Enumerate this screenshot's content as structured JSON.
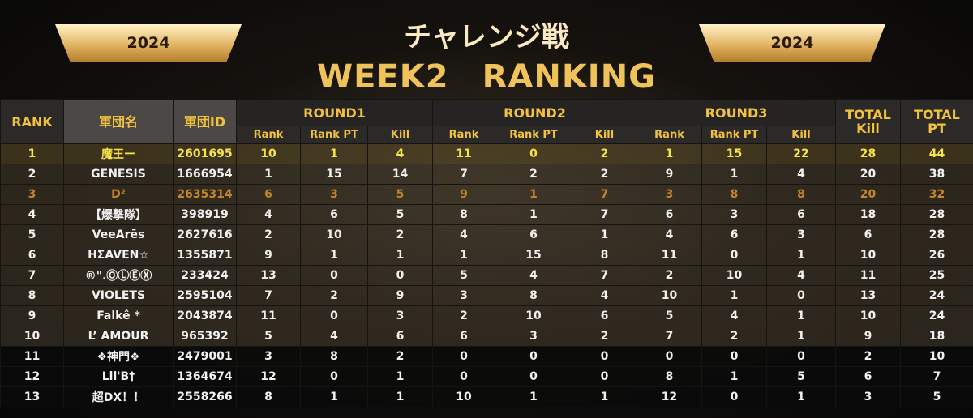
{
  "header": {
    "title": "チャレンジ戦",
    "subtitle": "WEEK2　RANKING",
    "year_left": "2024",
    "year_right": "2024"
  },
  "table": {
    "headers": {
      "top": [
        "RANK",
        "軍団名",
        "軍団ID",
        "ROUND1",
        "ROUND2",
        "ROUND3",
        "TOTAL\nKill",
        "TOTAL\nPT"
      ],
      "sub": [
        "Rank",
        "Rank PT",
        "Kill",
        "Rank",
        "Rank PT",
        "Kill",
        "Rank",
        "Rank PT",
        "Kill"
      ]
    },
    "rows": [
      [
        1,
        "魔王ー",
        2601695,
        10,
        1,
        4,
        11,
        0,
        2,
        1,
        15,
        22,
        28,
        44
      ],
      [
        2,
        "GENESIS",
        1666954,
        1,
        15,
        14,
        7,
        2,
        2,
        9,
        1,
        4,
        20,
        38
      ],
      [
        3,
        "D²",
        2635314,
        6,
        3,
        5,
        9,
        1,
        7,
        3,
        8,
        8,
        20,
        32
      ],
      [
        4,
        "【爆撃隊】",
        398919,
        4,
        6,
        5,
        8,
        1,
        7,
        6,
        3,
        6,
        18,
        28
      ],
      [
        5,
        "VeeArēs",
        2627616,
        2,
        10,
        2,
        4,
        6,
        1,
        4,
        6,
        3,
        6,
        28
      ],
      [
        6,
        "HΣAVEN☆",
        1355871,
        9,
        1,
        1,
        1,
        15,
        8,
        11,
        0,
        1,
        10,
        26
      ],
      [
        7,
        "®\".ⓄⓁⒺⓍ",
        233424,
        13,
        0,
        0,
        5,
        4,
        7,
        2,
        10,
        4,
        11,
        25
      ],
      [
        8,
        "VIOLETS",
        2595104,
        7,
        2,
        9,
        3,
        8,
        4,
        10,
        1,
        0,
        13,
        24
      ],
      [
        9,
        "Falkê *",
        2043874,
        11,
        0,
        3,
        2,
        10,
        6,
        5,
        4,
        1,
        10,
        24
      ],
      [
        10,
        "L’ AMOUR",
        965392,
        5,
        4,
        6,
        6,
        3,
        2,
        7,
        2,
        1,
        9,
        18
      ],
      [
        11,
        "❖神門❖",
        2479001,
        3,
        8,
        2,
        0,
        0,
        0,
        0,
        0,
        0,
        2,
        10
      ],
      [
        12,
        "Lil'B†",
        1364674,
        12,
        0,
        1,
        0,
        0,
        0,
        8,
        1,
        5,
        6,
        7
      ],
      [
        13,
        "超DX！！",
        2558266,
        8,
        1,
        1,
        10,
        1,
        1,
        12,
        0,
        1,
        3,
        5
      ]
    ]
  }
}
